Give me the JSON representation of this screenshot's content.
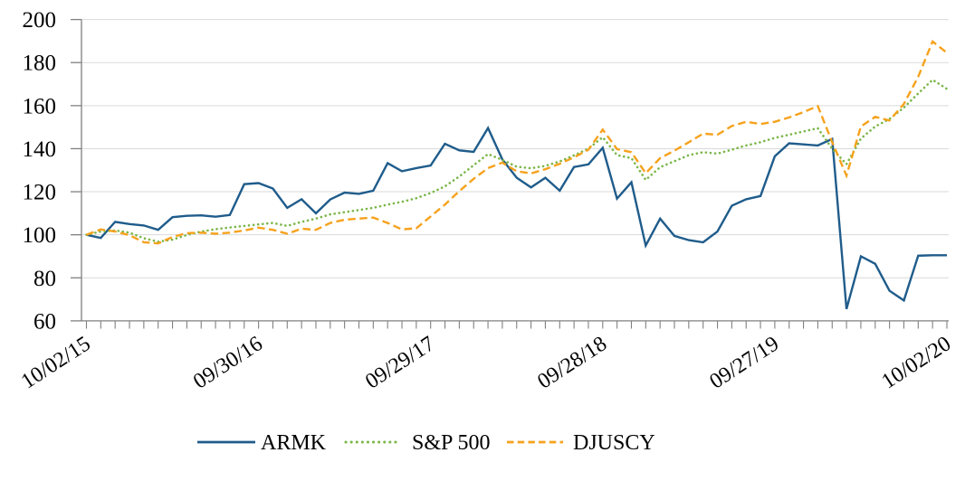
{
  "chart_data": {
    "type": "line",
    "title": "",
    "grid": "horizontal",
    "legend_position": "bottom",
    "x_axis": {
      "tick_labels": [
        "10/02/15",
        "09/30/16",
        "09/29/17",
        "09/28/18",
        "09/27/19",
        "10/02/20"
      ],
      "label_month_indices": [
        0,
        12,
        24,
        36,
        48,
        60
      ],
      "total_points": 61,
      "minor_tick_every_month": true
    },
    "y_axis": {
      "min": 60,
      "max": 200,
      "step": 20,
      "tick_labels": [
        "60",
        "80",
        "100",
        "120",
        "140",
        "160",
        "180",
        "200"
      ]
    },
    "colors": {
      "grid_line": "#D9D9D9",
      "axis_line": "#808080",
      "text": "#000000",
      "background": "#FFFFFF"
    },
    "series": [
      {
        "name": "ARMK",
        "style": "solid",
        "color": "#1F5C8B",
        "values": [
          100,
          98.5,
          106,
          105,
          104.3,
          102.3,
          108.2,
          108.8,
          109,
          108.4,
          109.2,
          123.5,
          124,
          121.5,
          112.5,
          116.5,
          110,
          116.4,
          119.6,
          119,
          120.5,
          133.3,
          129.5,
          131,
          132.2,
          142.3,
          139.2,
          138.5,
          149.6,
          135,
          126.5,
          122,
          126.5,
          120.5,
          131.5,
          132.7,
          140.4,
          116.8,
          124.4,
          95,
          107.5,
          99.5,
          97.5,
          96.5,
          101.5,
          113.5,
          116.5,
          118,
          136.5,
          142.5,
          142,
          141.5,
          144.5,
          65.5,
          90,
          86.5,
          74,
          69.5,
          90.3,
          90.5,
          90.5
        ]
      },
      {
        "name": "S&P 500",
        "style": "dotted",
        "color": "#7AB648",
        "values": [
          100,
          101.5,
          102,
          101,
          98.4,
          96.8,
          97.7,
          99.9,
          101.5,
          102.6,
          103.4,
          104.1,
          104.8,
          105.5,
          104.1,
          106,
          107.5,
          109.5,
          110.5,
          111.5,
          112.5,
          114,
          115.3,
          117,
          119.4,
          122.5,
          127.1,
          132.3,
          137.5,
          134.8,
          131.6,
          130.9,
          132,
          134.1,
          136.9,
          140,
          145.3,
          137,
          135.6,
          125.5,
          131.4,
          134.2,
          137,
          138.4,
          137.7,
          139.5,
          141.5,
          143,
          145,
          146.5,
          148,
          149.5,
          140,
          132.8,
          144.7,
          150.3,
          153.8,
          159.1,
          165.7,
          172,
          167.8
        ]
      },
      {
        "name": "DJUSCY",
        "style": "dashed",
        "color": "#F6A21D",
        "values": [
          100,
          102.5,
          101.5,
          99.8,
          96.5,
          96,
          99,
          100.8,
          101,
          100.5,
          101,
          102,
          103.3,
          102.3,
          100.5,
          102.8,
          102.3,
          105.5,
          107,
          107.5,
          108,
          105.5,
          102.5,
          103,
          108.5,
          114,
          120.3,
          126,
          131,
          133.5,
          129.5,
          128.5,
          130.5,
          133,
          136,
          139.5,
          148.9,
          139.8,
          138.4,
          128.6,
          135.6,
          139.1,
          143,
          147,
          146.5,
          150.5,
          152.5,
          151.5,
          152.5,
          154.5,
          157,
          159.8,
          143,
          127.5,
          150.3,
          154.8,
          153.1,
          160.8,
          173.4,
          189.8,
          184.6
        ]
      }
    ]
  }
}
